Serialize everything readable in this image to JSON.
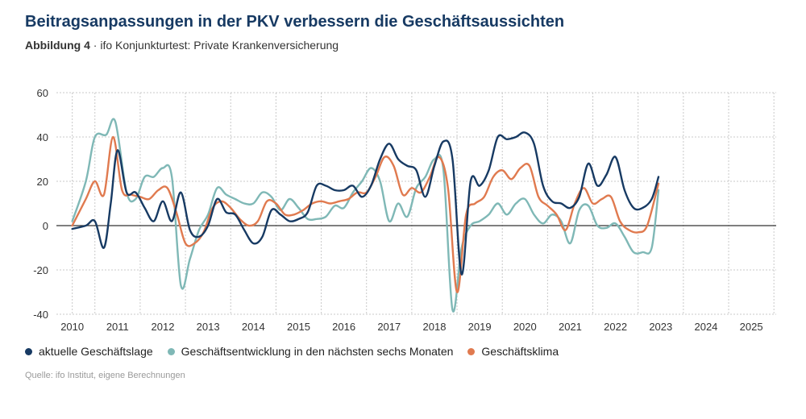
{
  "header": {
    "title": "Beitragsanpassungen in der PKV verbessern die Geschäftsaussichten",
    "figure_label": "Abbildung 4",
    "figure_sep": " · ",
    "figure_desc": "ifo Konjunkturtest: Private Krankenversicherung"
  },
  "source": "Quelle: ifo Institut, eigene Berechnungen",
  "colors": {
    "lage": "#173a63",
    "entwicklung": "#7fb8b6",
    "klima": "#e07a4f",
    "grid": "#c9c9c9",
    "zero": "#333333"
  },
  "chart_data": {
    "type": "line",
    "title": "Beitragsanpassungen in der PKV verbessern die Geschäftsaussichten",
    "xlabel": "",
    "ylabel": "",
    "xlim": [
      2009.65,
      2025.55
    ],
    "ylim": [
      -40,
      60
    ],
    "yticks": [
      -40,
      -20,
      0,
      20,
      40,
      60
    ],
    "xticks": [
      "2010",
      "2011",
      "2012",
      "2013",
      "2014",
      "2015",
      "2016",
      "2017",
      "2018",
      "2019",
      "2020",
      "2021",
      "2022",
      "2023",
      "2024",
      "2025"
    ],
    "grid": true,
    "legend_position": "bottom",
    "series": [
      {
        "name": "aktuelle Geschäftslage",
        "color_key": "lage",
        "points": [
          [
            2010.0,
            -1.5
          ],
          [
            2010.3,
            0
          ],
          [
            2010.5,
            2
          ],
          [
            2010.7,
            -10
          ],
          [
            2010.85,
            10
          ],
          [
            2011.0,
            34
          ],
          [
            2011.2,
            15
          ],
          [
            2011.4,
            15
          ],
          [
            2011.6,
            8
          ],
          [
            2011.8,
            2
          ],
          [
            2012.0,
            11
          ],
          [
            2012.2,
            2
          ],
          [
            2012.4,
            15
          ],
          [
            2012.6,
            -2
          ],
          [
            2012.8,
            -5
          ],
          [
            2013.0,
            0
          ],
          [
            2013.2,
            12
          ],
          [
            2013.4,
            6
          ],
          [
            2013.6,
            5
          ],
          [
            2013.8,
            -2
          ],
          [
            2014.0,
            -8
          ],
          [
            2014.2,
            -5
          ],
          [
            2014.4,
            7
          ],
          [
            2014.6,
            5
          ],
          [
            2014.8,
            2
          ],
          [
            2015.0,
            3
          ],
          [
            2015.2,
            6
          ],
          [
            2015.4,
            18
          ],
          [
            2015.6,
            18
          ],
          [
            2015.8,
            16
          ],
          [
            2016.0,
            16
          ],
          [
            2016.2,
            18
          ],
          [
            2016.4,
            13
          ],
          [
            2016.6,
            18
          ],
          [
            2016.8,
            30
          ],
          [
            2017.0,
            37
          ],
          [
            2017.2,
            30
          ],
          [
            2017.4,
            27
          ],
          [
            2017.6,
            25
          ],
          [
            2017.8,
            13
          ],
          [
            2018.0,
            27
          ],
          [
            2018.2,
            38
          ],
          [
            2018.4,
            30
          ],
          [
            2018.6,
            -22
          ],
          [
            2018.8,
            20
          ],
          [
            2019.0,
            18
          ],
          [
            2019.2,
            25
          ],
          [
            2019.4,
            40
          ],
          [
            2019.6,
            39
          ],
          [
            2019.8,
            40
          ],
          [
            2020.0,
            42
          ],
          [
            2020.2,
            37
          ],
          [
            2020.4,
            18
          ],
          [
            2020.6,
            11
          ],
          [
            2020.8,
            10
          ],
          [
            2021.0,
            8
          ],
          [
            2021.2,
            13
          ],
          [
            2021.4,
            28
          ],
          [
            2021.6,
            18
          ],
          [
            2021.8,
            23
          ],
          [
            2022.0,
            31
          ],
          [
            2022.2,
            16
          ],
          [
            2022.4,
            8
          ],
          [
            2022.6,
            8
          ],
          [
            2022.8,
            12
          ],
          [
            2022.95,
            22
          ]
        ]
      },
      {
        "name": "Geschäftsentwicklung in den nächsten sechs Monaten",
        "color_key": "entwicklung",
        "points": [
          [
            2010.0,
            2
          ],
          [
            2010.3,
            20
          ],
          [
            2010.5,
            40
          ],
          [
            2010.75,
            41
          ],
          [
            2010.95,
            47
          ],
          [
            2011.2,
            15
          ],
          [
            2011.4,
            12
          ],
          [
            2011.6,
            22
          ],
          [
            2011.8,
            22
          ],
          [
            2012.0,
            26
          ],
          [
            2012.2,
            22
          ],
          [
            2012.4,
            -27
          ],
          [
            2012.6,
            -15
          ],
          [
            2012.8,
            -2
          ],
          [
            2013.0,
            5
          ],
          [
            2013.2,
            17
          ],
          [
            2013.4,
            14
          ],
          [
            2013.6,
            12
          ],
          [
            2013.8,
            10
          ],
          [
            2014.0,
            10
          ],
          [
            2014.2,
            15
          ],
          [
            2014.4,
            13
          ],
          [
            2014.6,
            7
          ],
          [
            2014.8,
            12
          ],
          [
            2015.0,
            8
          ],
          [
            2015.2,
            3
          ],
          [
            2015.4,
            3
          ],
          [
            2015.6,
            4
          ],
          [
            2015.8,
            9
          ],
          [
            2016.0,
            8
          ],
          [
            2016.2,
            15
          ],
          [
            2016.4,
            20
          ],
          [
            2016.6,
            26
          ],
          [
            2016.8,
            20
          ],
          [
            2017.0,
            2
          ],
          [
            2017.2,
            10
          ],
          [
            2017.4,
            4
          ],
          [
            2017.6,
            17
          ],
          [
            2017.8,
            22
          ],
          [
            2018.0,
            30
          ],
          [
            2018.2,
            25
          ],
          [
            2018.4,
            -38
          ],
          [
            2018.6,
            -10
          ],
          [
            2018.8,
            0
          ],
          [
            2019.0,
            2
          ],
          [
            2019.2,
            5
          ],
          [
            2019.4,
            10
          ],
          [
            2019.6,
            5
          ],
          [
            2019.8,
            10
          ],
          [
            2020.0,
            12
          ],
          [
            2020.2,
            5
          ],
          [
            2020.4,
            1
          ],
          [
            2020.6,
            5
          ],
          [
            2020.8,
            2
          ],
          [
            2021.0,
            -8
          ],
          [
            2021.2,
            7
          ],
          [
            2021.4,
            9
          ],
          [
            2021.6,
            0
          ],
          [
            2021.8,
            -1
          ],
          [
            2022.0,
            1
          ],
          [
            2022.2,
            -5
          ],
          [
            2022.4,
            -12
          ],
          [
            2022.6,
            -12
          ],
          [
            2022.8,
            -10
          ],
          [
            2022.95,
            16
          ]
        ]
      },
      {
        "name": "Geschäftsklima",
        "color_key": "klima",
        "points": [
          [
            2010.0,
            0
          ],
          [
            2010.3,
            12
          ],
          [
            2010.5,
            20
          ],
          [
            2010.7,
            14
          ],
          [
            2010.9,
            40
          ],
          [
            2011.1,
            16
          ],
          [
            2011.3,
            14
          ],
          [
            2011.5,
            13
          ],
          [
            2011.7,
            12
          ],
          [
            2011.9,
            16
          ],
          [
            2012.1,
            17
          ],
          [
            2012.3,
            6
          ],
          [
            2012.5,
            -8
          ],
          [
            2012.7,
            -8
          ],
          [
            2012.9,
            -3
          ],
          [
            2013.1,
            8
          ],
          [
            2013.3,
            11
          ],
          [
            2013.5,
            8
          ],
          [
            2013.7,
            3
          ],
          [
            2013.9,
            0
          ],
          [
            2014.1,
            2
          ],
          [
            2014.3,
            11
          ],
          [
            2014.5,
            10
          ],
          [
            2014.7,
            5
          ],
          [
            2014.9,
            5
          ],
          [
            2015.1,
            7
          ],
          [
            2015.3,
            10
          ],
          [
            2015.5,
            11
          ],
          [
            2015.7,
            10
          ],
          [
            2015.9,
            11
          ],
          [
            2016.1,
            12
          ],
          [
            2016.3,
            15
          ],
          [
            2016.5,
            15
          ],
          [
            2016.7,
            22
          ],
          [
            2016.9,
            31
          ],
          [
            2017.1,
            27
          ],
          [
            2017.3,
            14
          ],
          [
            2017.5,
            17
          ],
          [
            2017.7,
            15
          ],
          [
            2017.9,
            22
          ],
          [
            2018.1,
            31
          ],
          [
            2018.3,
            17
          ],
          [
            2018.5,
            -30
          ],
          [
            2018.7,
            5
          ],
          [
            2018.9,
            10
          ],
          [
            2019.1,
            13
          ],
          [
            2019.3,
            22
          ],
          [
            2019.5,
            25
          ],
          [
            2019.7,
            21
          ],
          [
            2019.9,
            26
          ],
          [
            2020.1,
            27
          ],
          [
            2020.3,
            13
          ],
          [
            2020.5,
            9
          ],
          [
            2020.7,
            5
          ],
          [
            2020.9,
            -2
          ],
          [
            2021.1,
            10
          ],
          [
            2021.3,
            17
          ],
          [
            2021.5,
            10
          ],
          [
            2021.7,
            12
          ],
          [
            2021.9,
            13
          ],
          [
            2022.1,
            2
          ],
          [
            2022.3,
            -2
          ],
          [
            2022.5,
            -3
          ],
          [
            2022.7,
            0
          ],
          [
            2022.95,
            19
          ]
        ]
      }
    ]
  }
}
